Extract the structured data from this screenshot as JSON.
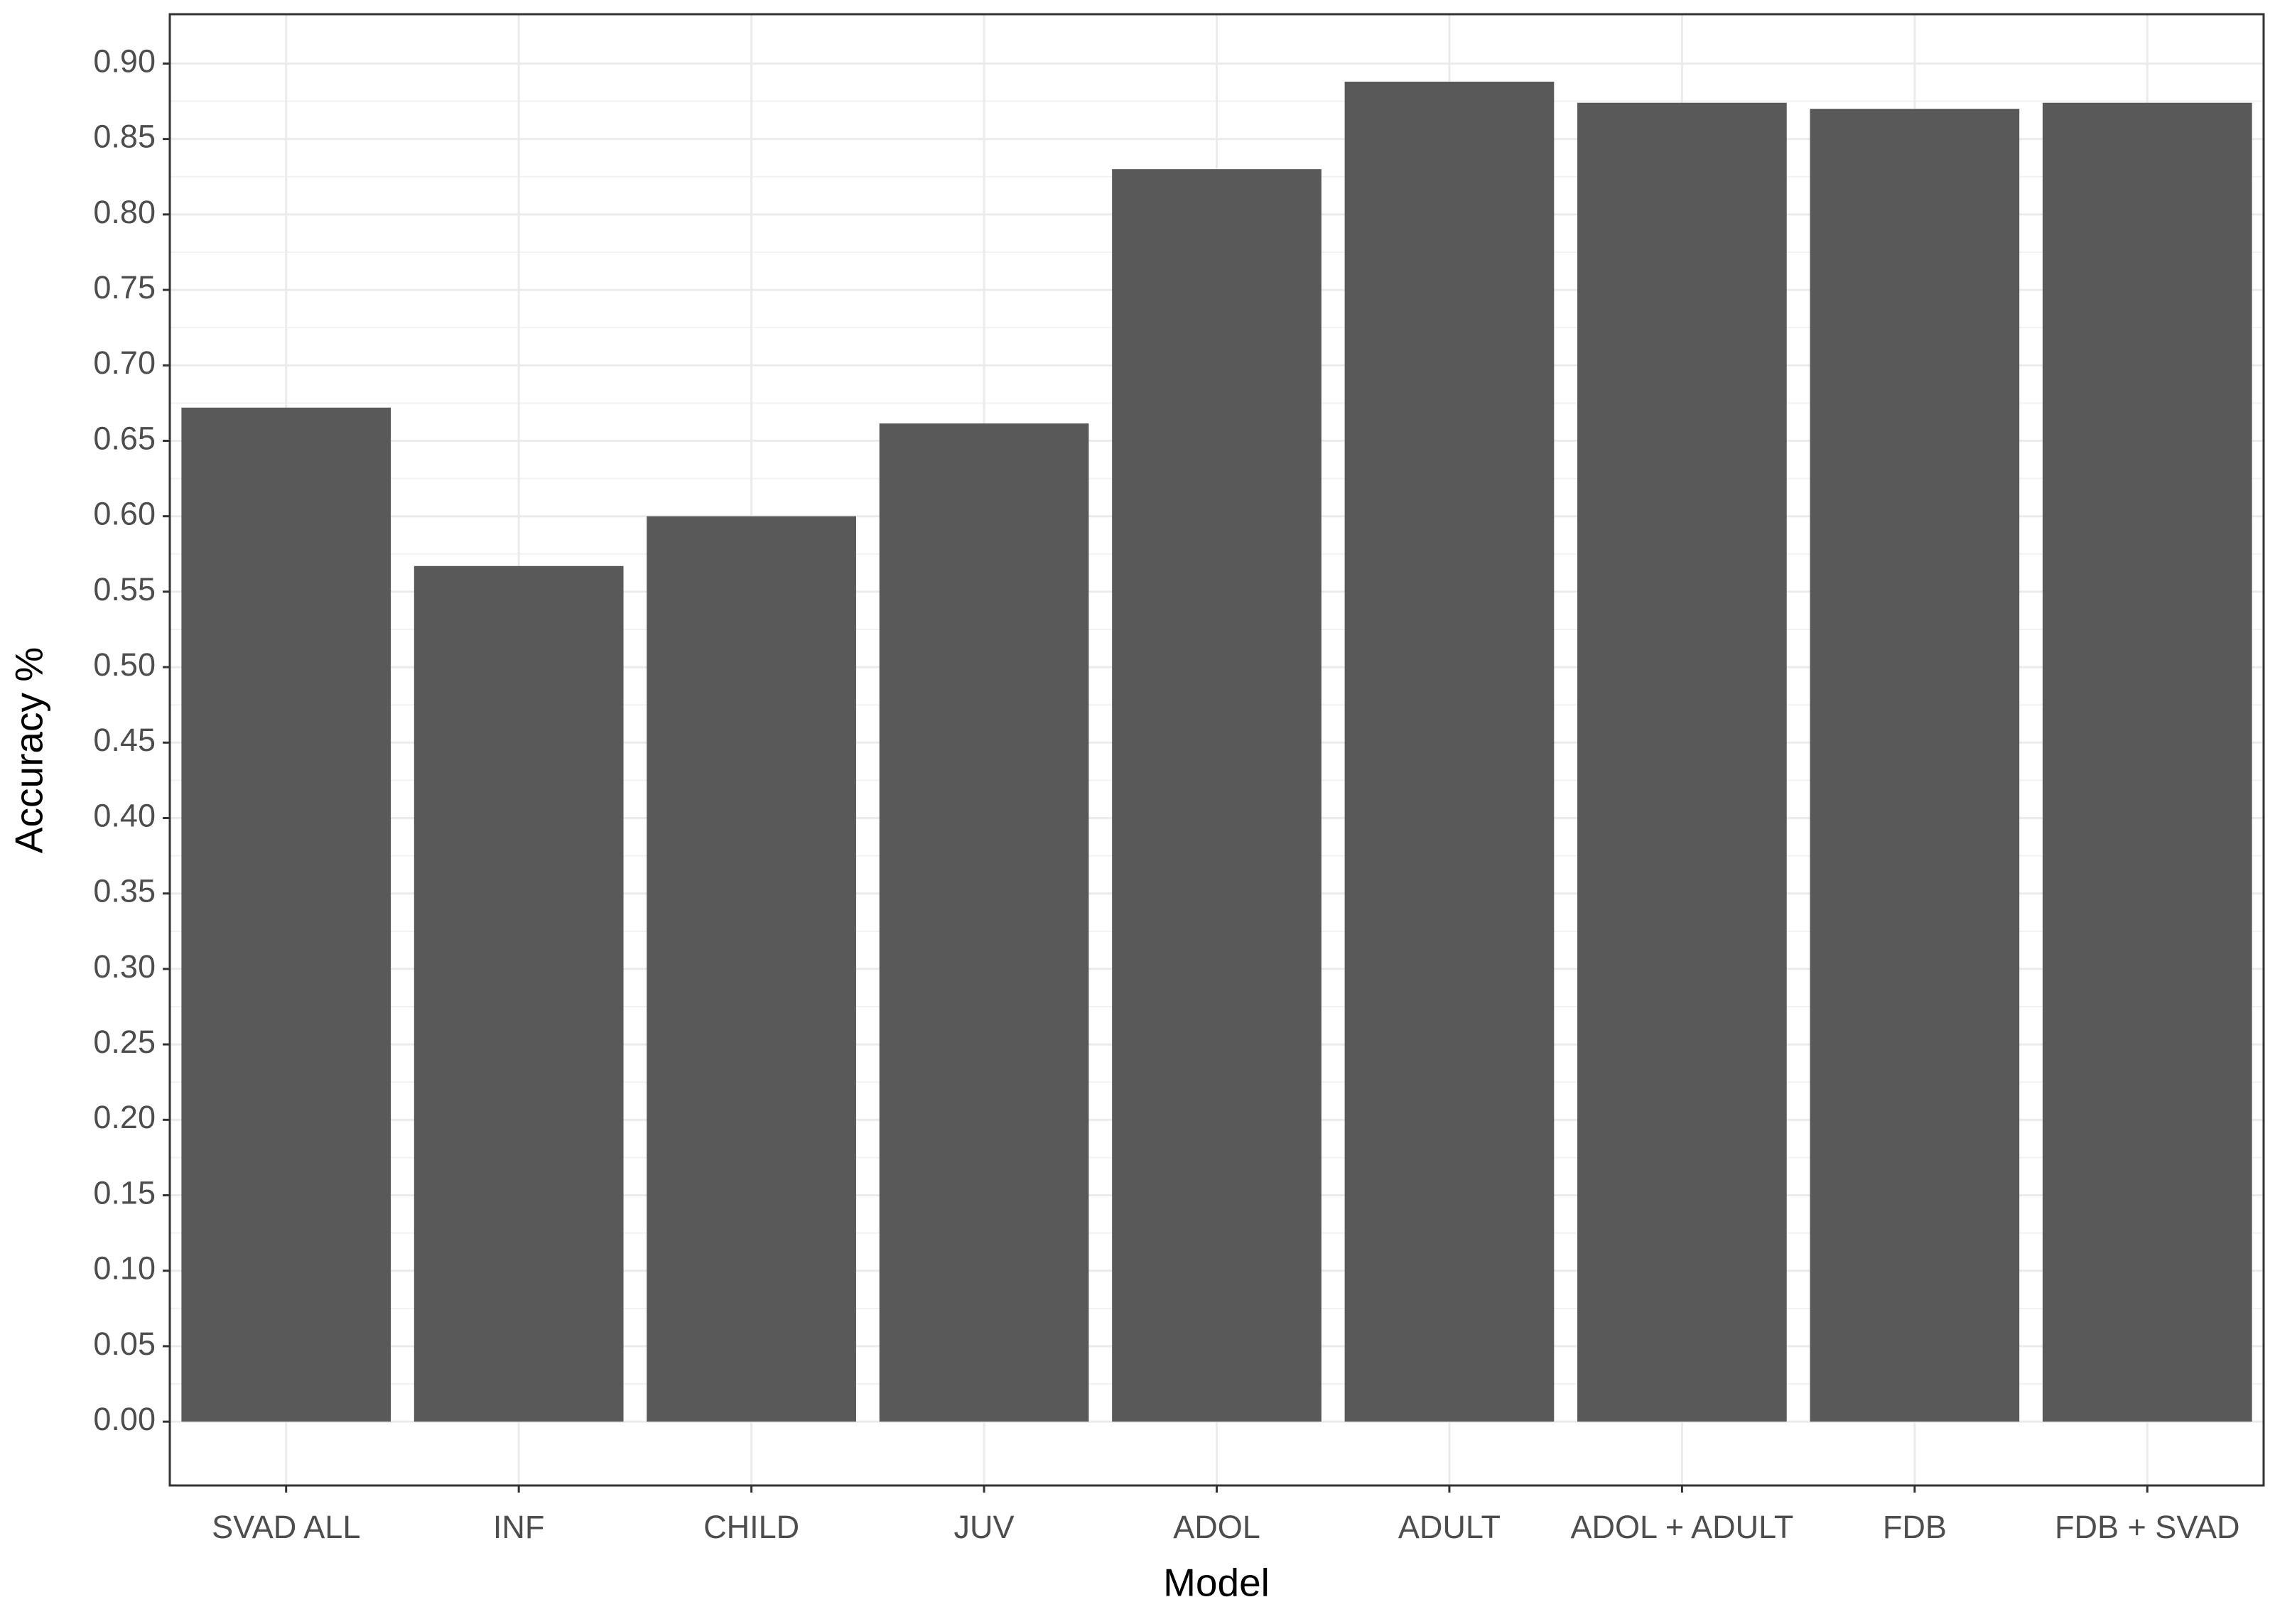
{
  "chart_data": {
    "type": "bar",
    "x_label": "Model",
    "y_label": "Accuracy %",
    "categories": [
      "SVAD ALL",
      "INF",
      "CHILD",
      "JUV",
      "ADOL",
      "ADULT",
      "ADOL + ADULT",
      "FDB",
      "FDB + SVAD"
    ],
    "values": [
      0.672,
      0.567,
      0.6,
      0.6615,
      0.83,
      0.888,
      0.874,
      0.87,
      0.874
    ],
    "color": "#595959",
    "ylim": [
      -0.0423,
      0.9327
    ],
    "yticks": [
      {
        "value": 0,
        "label": "0.00"
      },
      {
        "value": 0.05,
        "label": "0.05"
      },
      {
        "value": 0.1,
        "label": "0.10"
      },
      {
        "value": 0.15,
        "label": "0.15"
      },
      {
        "value": 0.2,
        "label": "0.20"
      },
      {
        "value": 0.25,
        "label": "0.25"
      },
      {
        "value": 0.3,
        "label": "0.30"
      },
      {
        "value": 0.35,
        "label": "0.35"
      },
      {
        "value": 0.4,
        "label": "0.40"
      },
      {
        "value": 0.45,
        "label": "0.45"
      },
      {
        "value": 0.5,
        "label": "0.50"
      },
      {
        "value": 0.55,
        "label": "0.55"
      },
      {
        "value": 0.6,
        "label": "0.60"
      },
      {
        "value": 0.65,
        "label": "0.65"
      },
      {
        "value": 0.7,
        "label": "0.70"
      },
      {
        "value": 0.75,
        "label": "0.75"
      },
      {
        "value": 0.8,
        "label": "0.80"
      },
      {
        "value": 0.85,
        "label": "0.85"
      },
      {
        "value": 0.9,
        "label": "0.90"
      }
    ],
    "grid": true
  }
}
